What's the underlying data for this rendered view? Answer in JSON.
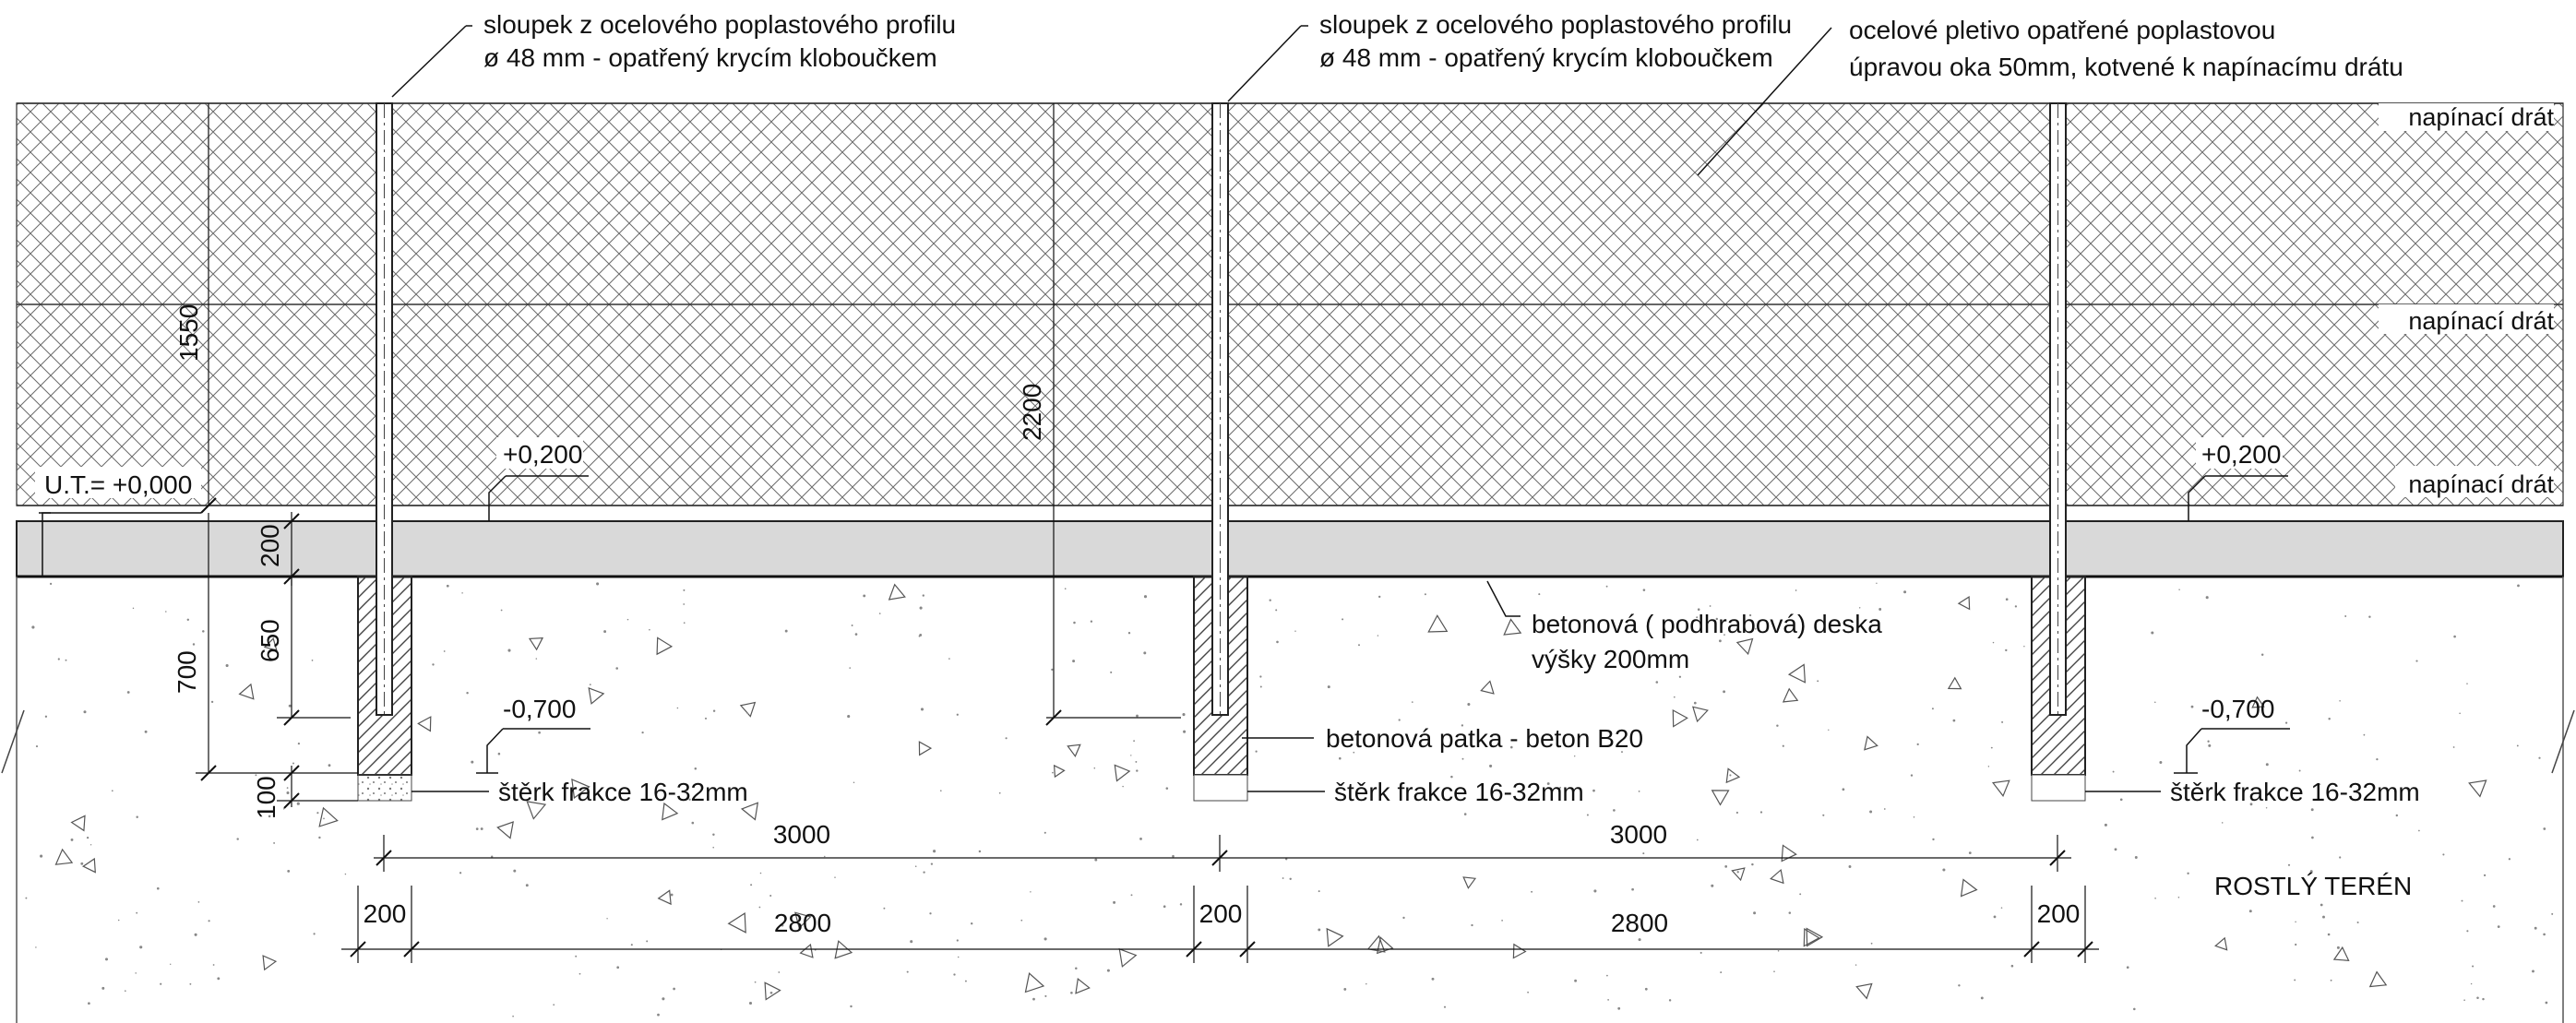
{
  "drawing": {
    "posts": [
      {
        "label_line1": "sloupek z ocelového poplastového profilu",
        "label_line2": "ø 48 mm - opatřený  krycím kloboučkem"
      },
      {
        "label_line1": "sloupek z ocelového poplastového profilu",
        "label_line2": "ø 48 mm - opatřený  krycím kloboučkem"
      }
    ],
    "mesh_label_line1": "ocelové pletivo opatřené poplastovou",
    "mesh_label_line2": "úpravou oka  50mm, kotvené k napínacímu drátu",
    "tension_wires": [
      "napínací drát",
      "napínací drát",
      "napínací drát"
    ],
    "levels": {
      "ut": "U.T.= +0,000",
      "slab_top_left": "+0,200",
      "slab_top_right": "+0,200",
      "footing_bottom_left": "-0,700",
      "footing_bottom_right": "-0,700"
    },
    "slab_label_line1": "betonová ( podhrabová) deska",
    "slab_label_line2": "výšky 200mm",
    "footing_label": "betonová patka - beton B20",
    "gravel_labels": [
      "štěrk frakce 16-32mm",
      "štěrk frakce 16-32mm",
      "štěrk frakce 16-32mm"
    ],
    "ground_label": "ROSTLÝ TERÉN",
    "dimensions": {
      "v_1550": "1550",
      "v_2200": "2200",
      "v_200": "200",
      "v_650": "650",
      "v_700": "700",
      "v_100": "100",
      "h_spacing": [
        "3000",
        "3000"
      ],
      "h_footing": [
        "200",
        "200",
        "200"
      ],
      "h_gap": [
        "2800",
        "2800"
      ]
    }
  }
}
